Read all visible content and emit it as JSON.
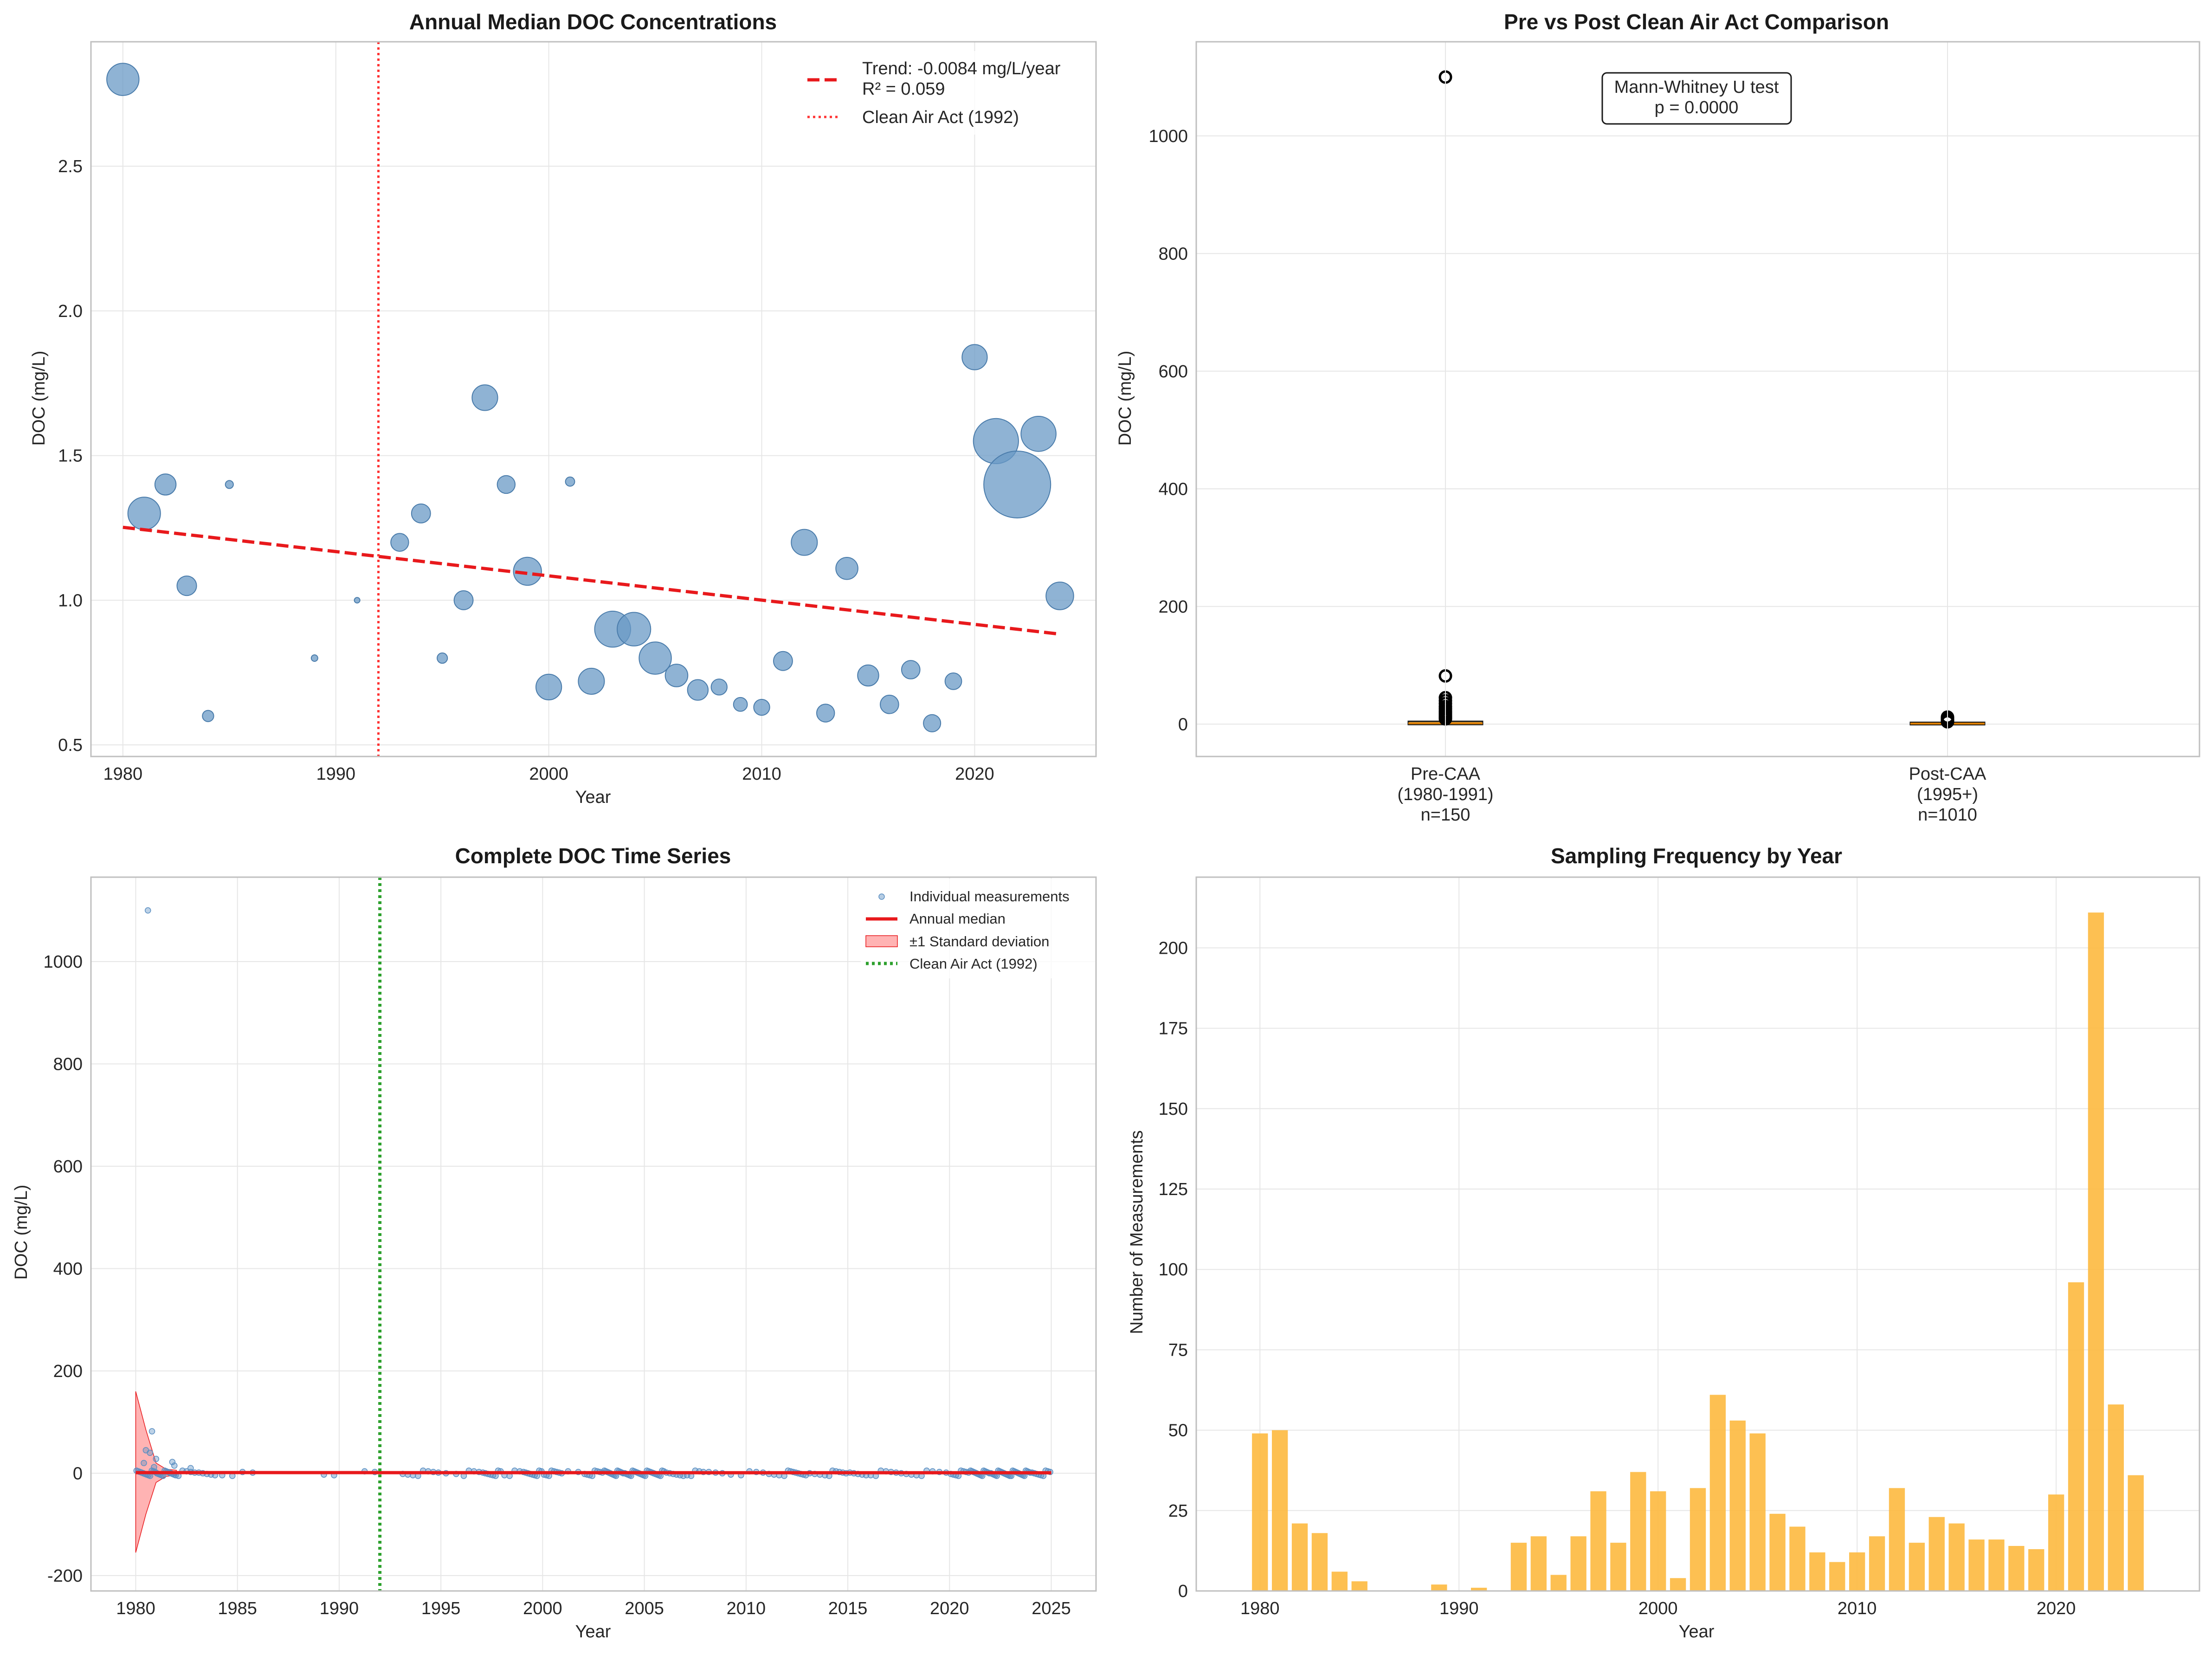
{
  "chart_data": [
    {
      "type": "scatter",
      "title": "Annual Median DOC Concentrations",
      "xlabel": "Year",
      "ylabel": "DOC (mg/L)",
      "xlim": [
        1978.5,
        2025.7
      ],
      "ylim": [
        0.46,
        2.93
      ],
      "xticks": [
        1980,
        1990,
        2000,
        2010,
        2020
      ],
      "yticks": [
        0.5,
        1.0,
        1.5,
        2.0,
        2.5
      ],
      "grid": true,
      "legend_position": "top-right",
      "series": [
        {
          "name": "Annual median",
          "color": "#6a9ac6",
          "x": [
            1980,
            1981,
            1982,
            1983,
            1984,
            1985,
            1989,
            1991,
            1993,
            1994,
            1995,
            1996,
            1997,
            1998,
            1999,
            2000,
            2001,
            2002,
            2003,
            2004,
            2005,
            2006,
            2007,
            2008,
            2009,
            2010,
            2011,
            2012,
            2013,
            2014,
            2015,
            2016,
            2017,
            2018,
            2019,
            2020,
            2021,
            2022,
            2023,
            2024
          ],
          "y": [
            2.8,
            1.3,
            1.4,
            1.05,
            0.6,
            1.4,
            0.8,
            1.0,
            1.2,
            1.3,
            0.8,
            1.0,
            1.7,
            1.4,
            1.1,
            0.7,
            1.41,
            0.72,
            0.9,
            0.9,
            0.8,
            0.74,
            0.69,
            0.7,
            0.64,
            0.63,
            0.79,
            1.2,
            0.61,
            1.11,
            0.74,
            0.64,
            0.76,
            0.575,
            0.72,
            1.84,
            1.55,
            1.4,
            1.575,
            1.015
          ],
          "n": [
            49,
            50,
            21,
            18,
            6,
            3,
            2,
            1,
            15,
            17,
            5,
            17,
            31,
            15,
            37,
            31,
            4,
            32,
            61,
            53,
            49,
            24,
            20,
            12,
            9,
            12,
            17,
            32,
            15,
            23,
            21,
            16,
            16,
            14,
            13,
            30,
            96,
            211,
            58,
            36
          ]
        }
      ],
      "trend": {
        "name": "Trend: -0.0084 mg/L/year",
        "r2_label": "R² = 0.059",
        "x": [
          1980,
          2024
        ],
        "y": [
          1.252,
          0.883
        ],
        "color": "#e8191c"
      },
      "vline": {
        "name": "Clean Air Act (1992)",
        "x": 1992,
        "color": "#ff3333"
      }
    },
    {
      "type": "box",
      "title": "Pre vs Post Clean Air Act Comparison",
      "xlabel": "",
      "ylabel": "DOC (mg/L)",
      "ylim": [
        -55,
        1160
      ],
      "yticks": [
        0,
        200,
        400,
        600,
        800,
        1000
      ],
      "grid": true,
      "categories": [
        "Pre-CAA\n(1980-1991)\nn=150",
        "Post-CAA\n(1995+)\nn=1010"
      ],
      "boxes": [
        {
          "q1": 0.9,
          "median": 1.4,
          "q3": 3.2,
          "whisker_low": 0.3,
          "whisker_high": 6.5,
          "outliers": [
            1100,
            82,
            45,
            40,
            35,
            30,
            26,
            22,
            19,
            16,
            13,
            11,
            9
          ]
        },
        {
          "q1": 0.6,
          "median": 0.9,
          "q3": 1.5,
          "whisker_low": 0.2,
          "whisker_high": 3.0,
          "outliers": [
            12,
            10,
            9,
            8,
            7,
            6,
            5,
            4.5,
            4
          ]
        }
      ],
      "box_color": "#f5c26b",
      "annotation": [
        "Mann-Whitney U test",
        "p = 0.0000"
      ]
    },
    {
      "type": "line",
      "title": "Complete DOC Time Series",
      "xlabel": "Year",
      "ylabel": "DOC (mg/L)",
      "xlim": [
        1977.8,
        2027.2
      ],
      "ylim": [
        -230,
        1165
      ],
      "xticks": [
        1980,
        1985,
        1990,
        1995,
        2000,
        2005,
        2010,
        2015,
        2020,
        2025
      ],
      "yticks": [
        -200,
        0,
        200,
        400,
        600,
        800,
        1000
      ],
      "grid": true,
      "legend_position": "top-right",
      "legend": [
        "Individual measurements",
        "Annual median",
        "±1 Standard deviation",
        "Clean Air Act (1992)"
      ],
      "outlier_points": [
        {
          "x": 1980.6,
          "y": 1100
        },
        {
          "x": 1980.8,
          "y": 82
        },
        {
          "x": 1980.5,
          "y": 45
        },
        {
          "x": 1980.7,
          "y": 40
        },
        {
          "x": 1981.0,
          "y": 28
        },
        {
          "x": 1981.8,
          "y": 22
        },
        {
          "x": 1981.9,
          "y": 15
        },
        {
          "x": 1982.7,
          "y": 10
        },
        {
          "x": 1980.4,
          "y": 20
        },
        {
          "x": 1980.9,
          "y": 12
        }
      ],
      "std_band": {
        "x": [
          1980,
          1980.5,
          1981,
          1981.5,
          1982
        ],
        "upper": [
          160,
          85,
          20,
          8,
          6
        ],
        "lower": [
          -155,
          -80,
          -18,
          -6,
          -4
        ]
      },
      "median_line": {
        "x": [
          1980,
          1985,
          1993,
          2025
        ],
        "y": [
          1.3,
          1.4,
          1.2,
          1.0
        ]
      },
      "vline": {
        "x": 1992,
        "color": "#2ca02c"
      },
      "colors": {
        "points": "#5b8fc2",
        "median": "#e8191c",
        "band": "#ff8080",
        "vline": "#2ca02c"
      }
    },
    {
      "type": "bar",
      "title": "Sampling Frequency by Year",
      "xlabel": "Year",
      "ylabel": "Number of Measurements",
      "xlim": [
        1976.8,
        2027.2
      ],
      "ylim": [
        0,
        222
      ],
      "xticks": [
        1980,
        1990,
        2000,
        2010,
        2020
      ],
      "yticks": [
        0,
        25,
        50,
        75,
        100,
        125,
        150,
        175,
        200
      ],
      "grid": true,
      "color": "#fdb93f",
      "x": [
        1980,
        1981,
        1982,
        1983,
        1984,
        1985,
        1989,
        1991,
        1993,
        1994,
        1995,
        1996,
        1997,
        1998,
        1999,
        2000,
        2001,
        2002,
        2003,
        2004,
        2005,
        2006,
        2007,
        2008,
        2009,
        2010,
        2011,
        2012,
        2013,
        2014,
        2015,
        2016,
        2017,
        2018,
        2019,
        2020,
        2021,
        2022,
        2023,
        2024
      ],
      "values": [
        49,
        50,
        21,
        18,
        6,
        3,
        2,
        1,
        15,
        17,
        5,
        17,
        31,
        15,
        37,
        31,
        4,
        32,
        61,
        53,
        49,
        24,
        20,
        12,
        9,
        12,
        17,
        32,
        15,
        23,
        21,
        16,
        16,
        14,
        13,
        30,
        96,
        211,
        58,
        36
      ]
    }
  ]
}
